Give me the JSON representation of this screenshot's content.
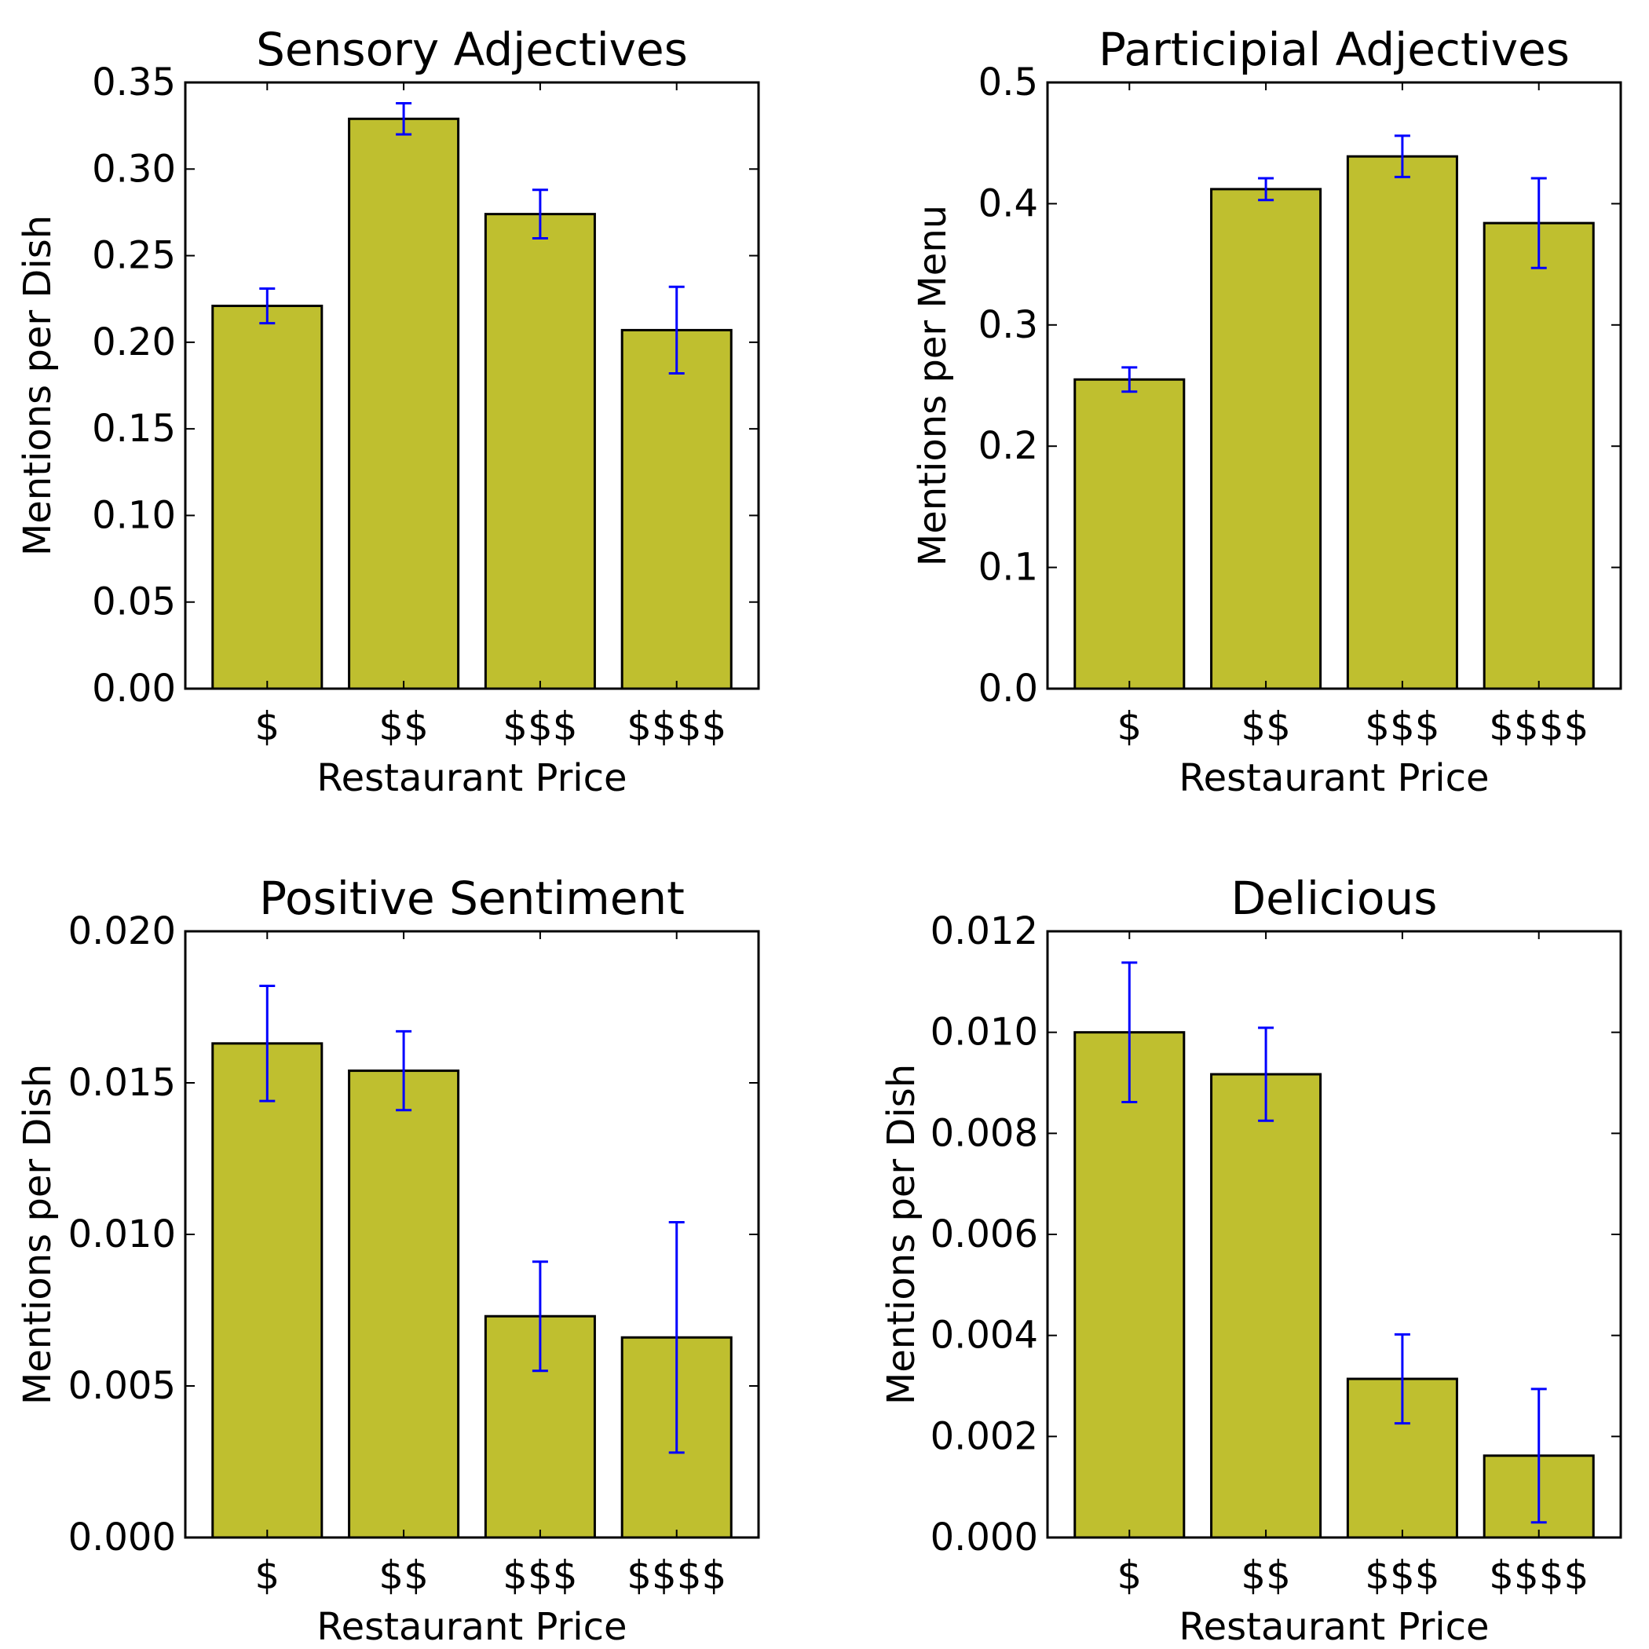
{
  "chart_data": [
    {
      "type": "bar",
      "title": "Sensory Adjectives",
      "xlabel": "Restaurant Price",
      "ylabel": "Mentions per Dish",
      "categories": [
        "$",
        "$$",
        "$$$",
        "$$$$"
      ],
      "values": [
        0.221,
        0.329,
        0.274,
        0.207
      ],
      "errors": [
        0.01,
        0.009,
        0.014,
        0.025
      ],
      "ylim": [
        0,
        0.35
      ],
      "yticks": [
        "0.00",
        "0.05",
        "0.10",
        "0.15",
        "0.20",
        "0.25",
        "0.30",
        "0.35"
      ],
      "ytick_values": [
        0,
        0.05,
        0.1,
        0.15,
        0.2,
        0.25,
        0.3,
        0.35
      ],
      "grid": false,
      "colors": {
        "bar": "#bfbf2f",
        "error": "#0000ff",
        "edge": "#000000"
      }
    },
    {
      "type": "bar",
      "title": "Participial Adjectives",
      "xlabel": "Restaurant Price",
      "ylabel": "Mentions per Menu",
      "categories": [
        "$",
        "$$",
        "$$$",
        "$$$$"
      ],
      "values": [
        0.255,
        0.412,
        0.439,
        0.384
      ],
      "errors": [
        0.01,
        0.009,
        0.017,
        0.037
      ],
      "ylim": [
        0,
        0.5
      ],
      "yticks": [
        "0.0",
        "0.1",
        "0.2",
        "0.3",
        "0.4",
        "0.5"
      ],
      "ytick_values": [
        0,
        0.1,
        0.2,
        0.3,
        0.4,
        0.5
      ],
      "grid": false,
      "colors": {
        "bar": "#bfbf2f",
        "error": "#0000ff",
        "edge": "#000000"
      }
    },
    {
      "type": "bar",
      "title": "Positive Sentiment",
      "xlabel": "Restaurant Price",
      "ylabel": "Mentions per Dish",
      "categories": [
        "$",
        "$$",
        "$$$",
        "$$$$"
      ],
      "values": [
        0.0163,
        0.0154,
        0.0073,
        0.0066
      ],
      "errors": [
        0.0019,
        0.0013,
        0.0018,
        0.0038
      ],
      "ylim": [
        0,
        0.02
      ],
      "yticks": [
        "0.000",
        "0.005",
        "0.010",
        "0.015",
        "0.020"
      ],
      "ytick_values": [
        0,
        0.005,
        0.01,
        0.015,
        0.02
      ],
      "grid": false,
      "colors": {
        "bar": "#bfbf2f",
        "error": "#0000ff",
        "edge": "#000000"
      }
    },
    {
      "type": "bar",
      "title": "Delicious",
      "xlabel": "Restaurant Price",
      "ylabel": "Mentions per Dish",
      "categories": [
        "$",
        "$$",
        "$$$",
        "$$$$"
      ],
      "values": [
        0.01,
        0.00917,
        0.00314,
        0.00162
      ],
      "errors": [
        0.00138,
        0.00092,
        0.00088,
        0.00132
      ],
      "ylim": [
        0,
        0.012
      ],
      "yticks": [
        "0.000",
        "0.002",
        "0.004",
        "0.006",
        "0.008",
        "0.010",
        "0.012"
      ],
      "ytick_values": [
        0,
        0.002,
        0.004,
        0.006,
        0.008,
        0.01,
        0.012
      ],
      "grid": false,
      "colors": {
        "bar": "#bfbf2f",
        "error": "#0000ff",
        "edge": "#000000"
      }
    }
  ]
}
